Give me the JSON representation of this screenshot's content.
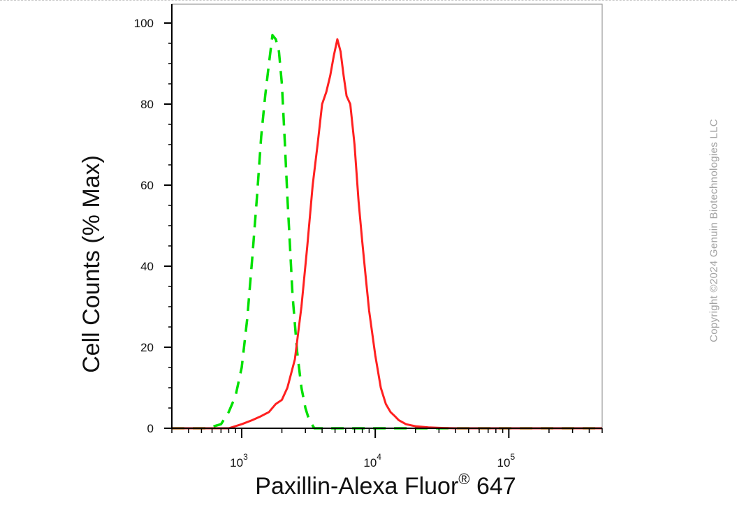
{
  "chart_data": {
    "type": "line",
    "xlabel": "Paxillin-Alexa Fluor",
    "xlabel_superscript": "®",
    "xlabel_suffix": " 647",
    "ylabel": "Cell Counts (% Max)",
    "x_scale": "log",
    "xlim": [
      300,
      500000
    ],
    "ylim": [
      0,
      100
    ],
    "y_ticks": [
      0,
      20,
      40,
      60,
      80,
      100
    ],
    "x_major_ticks": [
      {
        "value": 1000,
        "base": "10",
        "exp": "3"
      },
      {
        "value": 10000,
        "base": "10",
        "exp": "4"
      },
      {
        "value": 100000,
        "base": "10",
        "exp": "5"
      }
    ],
    "grid": false,
    "legend": "none",
    "series": [
      {
        "color": "#00e000",
        "style": "dashed",
        "x": [
          300,
          550,
          700,
          800,
          900,
          1000,
          1100,
          1200,
          1300,
          1400,
          1500,
          1600,
          1700,
          1800,
          1900,
          2000,
          2100,
          2200,
          2300,
          2400,
          2600,
          2800,
          3000,
          3200,
          3500,
          4000,
          500000
        ],
        "y": [
          0,
          0,
          1,
          4,
          8,
          15,
          27,
          42,
          57,
          72,
          82,
          90,
          97,
          96,
          93,
          85,
          71,
          57,
          45,
          33,
          19,
          10,
          5,
          2,
          0,
          0,
          0
        ]
      },
      {
        "color": "#ff2020",
        "style": "solid",
        "x": [
          300,
          600,
          800,
          1000,
          1200,
          1400,
          1600,
          1800,
          2000,
          2200,
          2500,
          2800,
          3100,
          3400,
          3700,
          4000,
          4300,
          4600,
          4900,
          5200,
          5500,
          5800,
          6100,
          6500,
          7000,
          7500,
          8000,
          8500,
          9000,
          10000,
          11000,
          12000,
          13000,
          14000,
          15000,
          17000,
          20000,
          25000,
          30000,
          40000,
          60000,
          500000
        ],
        "y": [
          0,
          0,
          0,
          1,
          2,
          3,
          4,
          6,
          7,
          10,
          17,
          30,
          45,
          60,
          70,
          80,
          83,
          87,
          92,
          96,
          93,
          87,
          82,
          80,
          70,
          56,
          46,
          37,
          29,
          18,
          10,
          6,
          4,
          3,
          2,
          1,
          0.5,
          0.2,
          0.1,
          0,
          0,
          0
        ]
      }
    ]
  },
  "watermark": "Copyright ©2024 Genuin Biotechnologies LLC"
}
